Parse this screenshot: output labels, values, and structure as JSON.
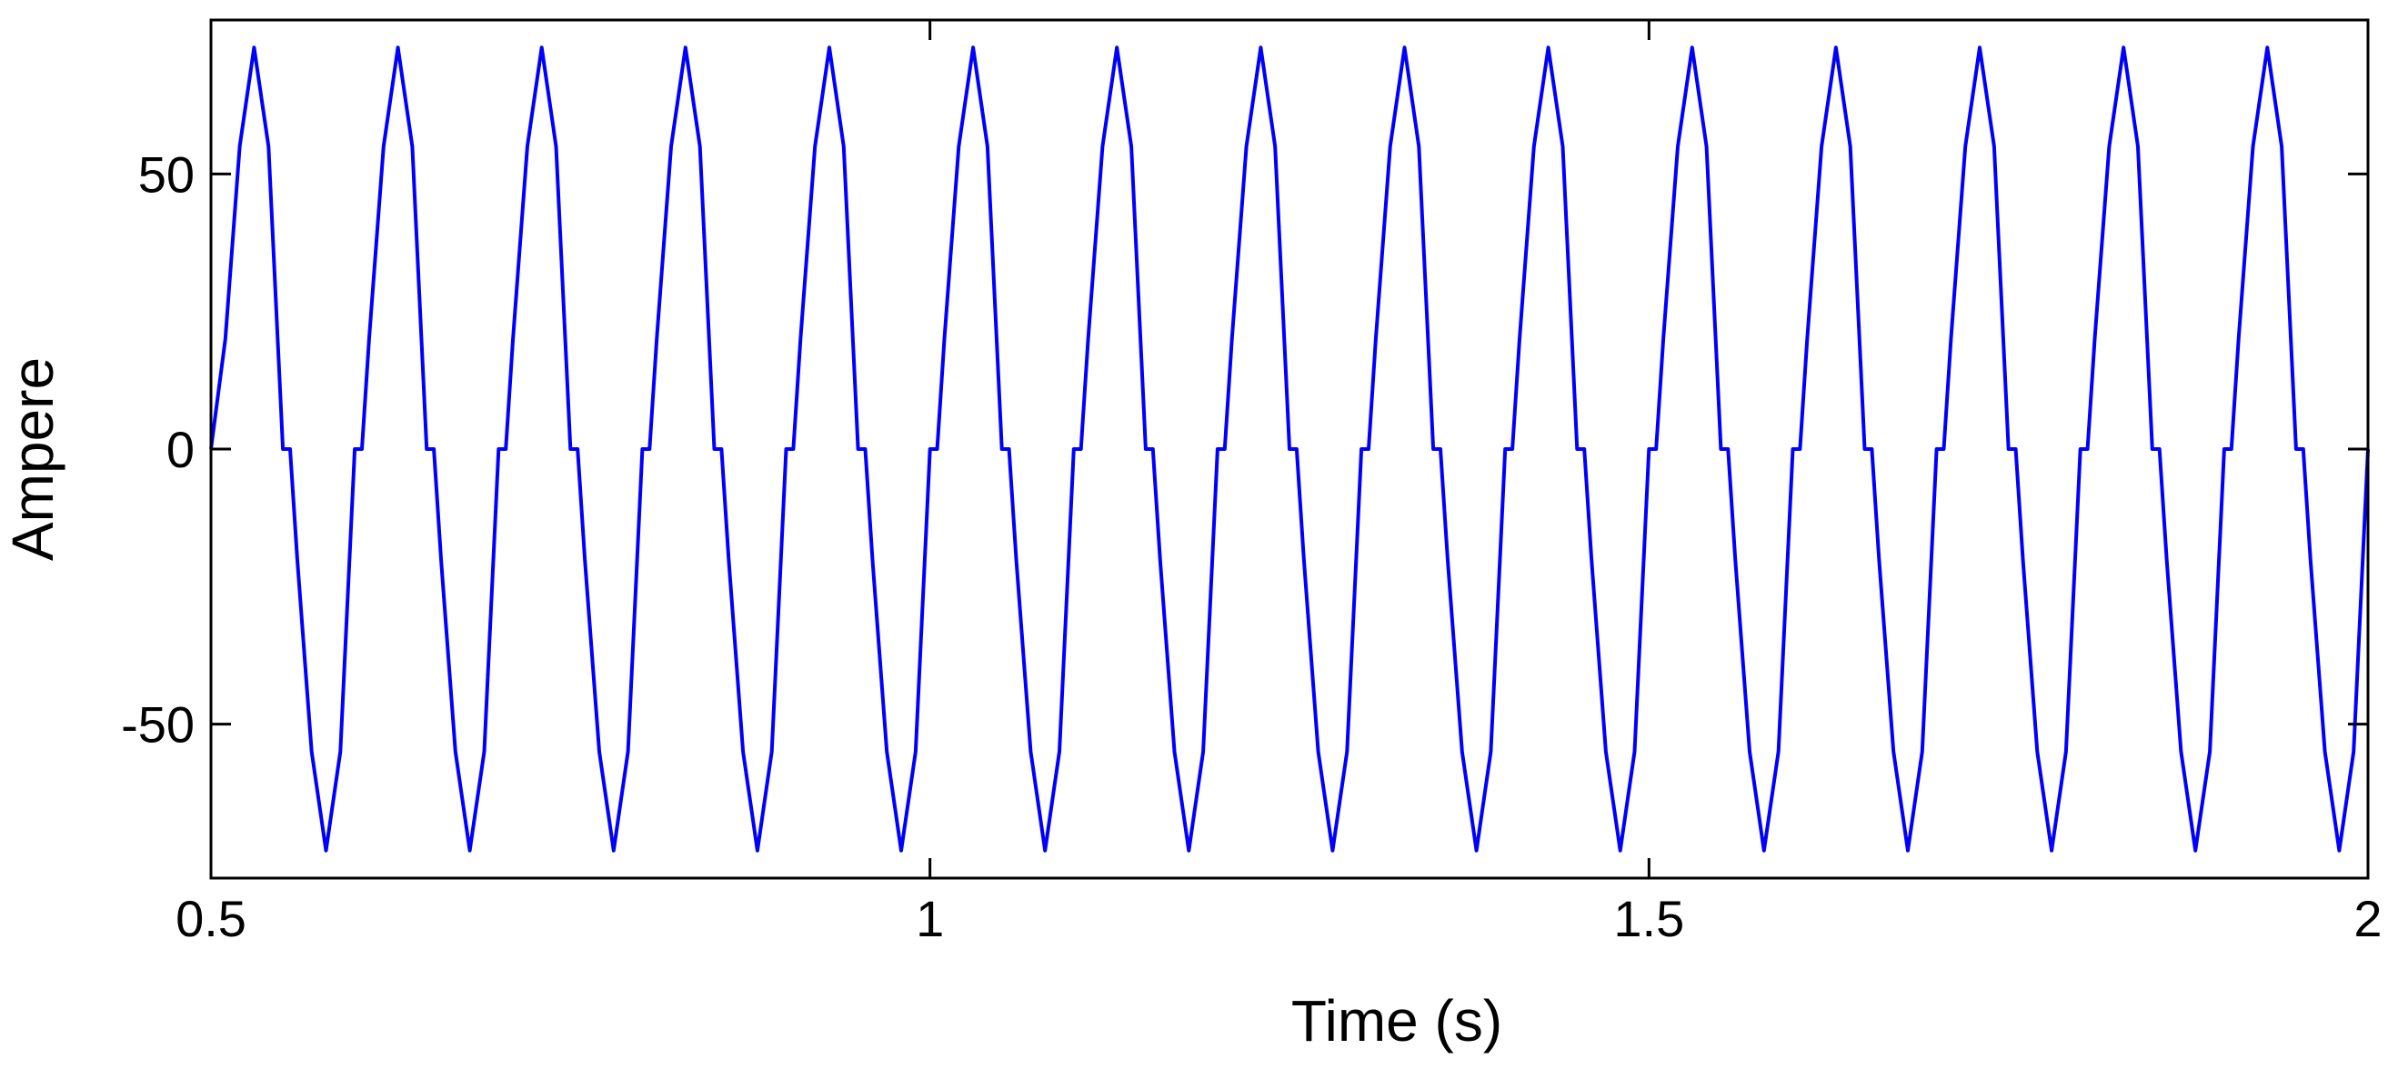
{
  "chart_data": {
    "type": "line",
    "title": "",
    "xlabel": "Time (s)",
    "ylabel": "Ampere",
    "xlim": [
      0.5,
      2
    ],
    "ylim": [
      -78,
      78
    ],
    "xticks": [
      0.5,
      1,
      1.5,
      2
    ],
    "xtick_labels": [
      "0.5",
      "1",
      "1.5",
      "2"
    ],
    "yticks": [
      -50,
      0,
      50
    ],
    "ytick_labels": [
      "-50",
      "0",
      "50"
    ],
    "grid": false,
    "legend": "none",
    "line_color": "#0000ff",
    "series": [
      {
        "x": [
          0.5,
          0.51,
          0.52,
          0.53,
          0.54,
          0.55,
          0.555,
          0.56,
          0.57,
          0.58,
          0.59,
          0.6,
          0.605,
          0.61,
          0.62,
          0.63,
          0.64,
          0.65,
          0.655,
          0.66,
          0.67,
          0.68,
          0.69,
          0.7,
          0.705,
          0.71,
          0.72,
          0.73,
          0.74,
          0.75,
          0.755,
          0.76,
          0.77,
          0.78,
          0.79,
          0.8,
          0.805,
          0.81,
          0.82,
          0.83,
          0.84,
          0.85,
          0.855,
          0.86,
          0.87,
          0.88,
          0.89,
          0.9,
          0.905,
          0.91,
          0.92,
          0.93,
          0.94,
          0.95,
          0.955,
          0.96,
          0.97,
          0.98,
          0.99,
          1.0,
          1.005,
          1.01,
          1.02,
          1.03,
          1.04,
          1.05,
          1.055,
          1.06,
          1.07,
          1.08,
          1.09,
          1.1,
          1.105,
          1.11,
          1.12,
          1.13,
          1.14,
          1.15,
          1.155,
          1.16,
          1.17,
          1.18,
          1.19,
          1.2,
          1.205,
          1.21,
          1.22,
          1.23,
          1.24,
          1.25,
          1.255,
          1.26,
          1.27,
          1.28,
          1.29,
          1.3,
          1.305,
          1.31,
          1.32,
          1.33,
          1.34,
          1.35,
          1.355,
          1.36,
          1.37,
          1.38,
          1.39,
          1.4,
          1.405,
          1.41,
          1.42,
          1.43,
          1.44,
          1.45,
          1.455,
          1.46,
          1.47,
          1.48,
          1.49,
          1.5,
          1.505,
          1.51,
          1.52,
          1.53,
          1.54,
          1.55,
          1.555,
          1.56,
          1.57,
          1.58,
          1.59,
          1.6,
          1.605,
          1.61,
          1.62,
          1.63,
          1.64,
          1.65,
          1.655,
          1.66,
          1.67,
          1.68,
          1.69,
          1.7,
          1.705,
          1.71,
          1.72,
          1.73,
          1.74,
          1.75,
          1.755,
          1.76,
          1.77,
          1.78,
          1.79,
          1.8,
          1.805,
          1.81,
          1.82,
          1.83,
          1.84,
          1.85,
          1.855,
          1.86,
          1.87,
          1.88,
          1.89,
          1.9,
          1.905,
          1.91,
          1.92,
          1.93,
          1.94,
          1.95,
          1.955,
          1.96,
          1.97,
          1.98,
          1.99,
          2.0
        ],
        "y": [
          0,
          20,
          55,
          73,
          55,
          0,
          0,
          -20,
          -55,
          -73,
          -55,
          0,
          0,
          20,
          55,
          73,
          55,
          0,
          0,
          -20,
          -55,
          -73,
          -55,
          0,
          0,
          20,
          55,
          73,
          55,
          0,
          0,
          -20,
          -55,
          -73,
          -55,
          0,
          0,
          20,
          55,
          73,
          55,
          0,
          0,
          -20,
          -55,
          -73,
          -55,
          0,
          0,
          20,
          55,
          73,
          55,
          0,
          0,
          -20,
          -55,
          -73,
          -55,
          0,
          0,
          20,
          55,
          73,
          55,
          0,
          0,
          -20,
          -55,
          -73,
          -55,
          0,
          0,
          20,
          55,
          73,
          55,
          0,
          0,
          -20,
          -55,
          -73,
          -55,
          0,
          0,
          20,
          55,
          73,
          55,
          0,
          0,
          -20,
          -55,
          -73,
          -55,
          0,
          0,
          20,
          55,
          73,
          55,
          0,
          0,
          -20,
          -55,
          -73,
          -55,
          0,
          0,
          20,
          55,
          73,
          55,
          0,
          0,
          -20,
          -55,
          -73,
          -55,
          0,
          0,
          20,
          55,
          73,
          55,
          0,
          0,
          -20,
          -55,
          -73,
          -55,
          0,
          0,
          20,
          55,
          73,
          55,
          0,
          0,
          -20,
          -55,
          -73,
          -55,
          0,
          0,
          20,
          55,
          73,
          55,
          0,
          0,
          -20,
          -55,
          -73,
          -55,
          0,
          0,
          20,
          55,
          73,
          55,
          0,
          0,
          -20,
          -55,
          -73,
          -55,
          0,
          0,
          20,
          55,
          73,
          55,
          0,
          0,
          -20,
          -55,
          -73,
          -55,
          0
        ]
      }
    ]
  }
}
